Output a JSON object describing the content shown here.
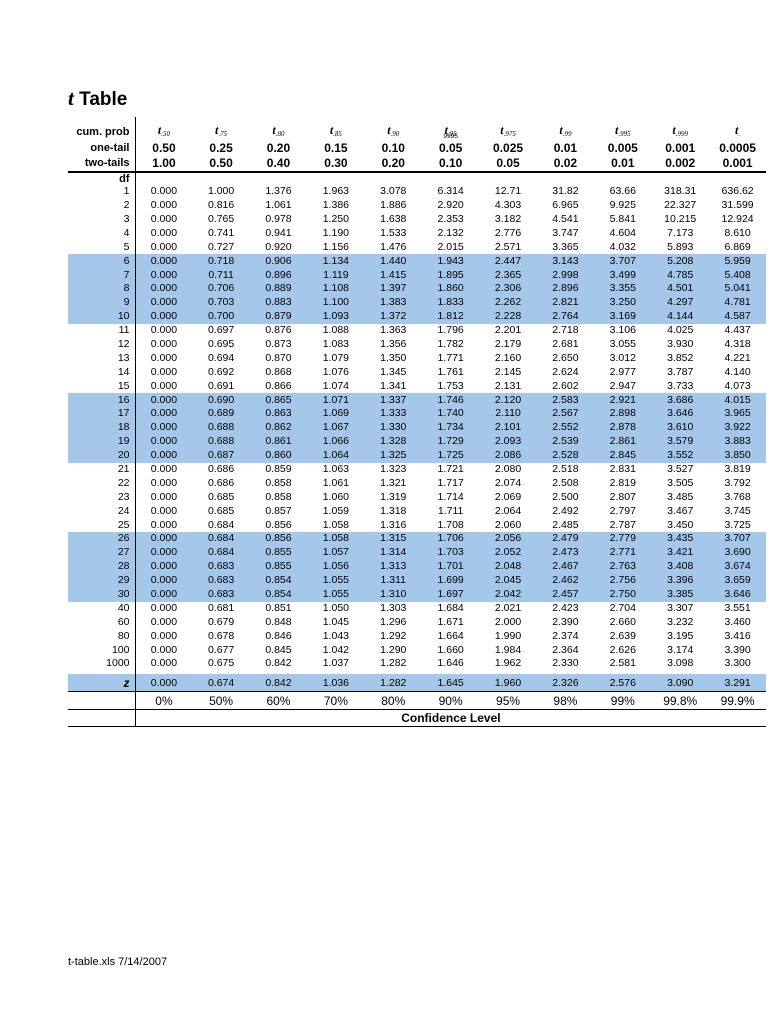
{
  "colors": {
    "row_highlight": "#a5c7e9",
    "border": "#000000",
    "page_background": "#ffffff"
  },
  "title": {
    "t": "t",
    "rest": " Table"
  },
  "table": {
    "corner_labels": {
      "cum_prob": "cum. prob",
      "one_tail": "one-tail",
      "two_tails": "two-tails",
      "df": "df"
    },
    "col_headers": [
      {
        "base": "t",
        "sub": ".50"
      },
      {
        "base": "t",
        "sub": ".75"
      },
      {
        "base": "t",
        "sub": ".80"
      },
      {
        "base": "t",
        "sub": ".85"
      },
      {
        "base": "t",
        "sub": ".90"
      },
      {
        "base": "t",
        "sub": ".95",
        "note": "9995"
      },
      {
        "base": "t",
        "sub": ".975"
      },
      {
        "base": "t",
        "sub": ".99"
      },
      {
        "base": "t",
        "sub": ".995"
      },
      {
        "base": "t",
        "sub": ".999"
      },
      {
        "base": "t",
        "sub": "."
      }
    ],
    "one_tail_values": [
      "0.50",
      "0.25",
      "0.20",
      "0.15",
      "0.10",
      "0.05",
      "0.025",
      "0.01",
      "0.005",
      "0.001",
      "0.0005"
    ],
    "two_tail_values": [
      "1.00",
      "0.50",
      "0.40",
      "0.30",
      "0.20",
      "0.10",
      "0.05",
      "0.02",
      "0.01",
      "0.002",
      "0.001"
    ],
    "rows": [
      {
        "df": "1",
        "values": [
          "0.000",
          "1.000",
          "1.376",
          "1.963",
          "3.078",
          "6.314",
          "12.71",
          "31.82",
          "63.66",
          "318.31",
          "636.62"
        ]
      },
      {
        "df": "2",
        "values": [
          "0.000",
          "0.816",
          "1.061",
          "1.386",
          "1.886",
          "2.920",
          "4.303",
          "6.965",
          "9.925",
          "22.327",
          "31.599"
        ]
      },
      {
        "df": "3",
        "values": [
          "0.000",
          "0.765",
          "0.978",
          "1.250",
          "1.638",
          "2.353",
          "3.182",
          "4.541",
          "5.841",
          "10.215",
          "12.924"
        ]
      },
      {
        "df": "4",
        "values": [
          "0.000",
          "0.741",
          "0.941",
          "1.190",
          "1.533",
          "2.132",
          "2.776",
          "3.747",
          "4.604",
          "7.173",
          "8.610"
        ]
      },
      {
        "df": "5",
        "values": [
          "0.000",
          "0.727",
          "0.920",
          "1.156",
          "1.476",
          "2.015",
          "2.571",
          "3.365",
          "4.032",
          "5.893",
          "6.869"
        ]
      },
      {
        "df": "6",
        "highlight": true,
        "values": [
          "0.000",
          "0.718",
          "0.906",
          "1.134",
          "1.440",
          "1.943",
          "2.447",
          "3.143",
          "3.707",
          "5.208",
          "5.959"
        ]
      },
      {
        "df": "7",
        "highlight": true,
        "values": [
          "0.000",
          "0.711",
          "0.896",
          "1.119",
          "1.415",
          "1.895",
          "2.365",
          "2.998",
          "3.499",
          "4.785",
          "5.408"
        ]
      },
      {
        "df": "8",
        "highlight": true,
        "values": [
          "0.000",
          "0.706",
          "0.889",
          "1.108",
          "1.397",
          "1.860",
          "2.306",
          "2.896",
          "3.355",
          "4.501",
          "5.041"
        ]
      },
      {
        "df": "9",
        "highlight": true,
        "values": [
          "0.000",
          "0.703",
          "0.883",
          "1.100",
          "1.383",
          "1.833",
          "2.262",
          "2.821",
          "3.250",
          "4.297",
          "4.781"
        ]
      },
      {
        "df": "10",
        "highlight": true,
        "values": [
          "0.000",
          "0.700",
          "0.879",
          "1.093",
          "1.372",
          "1.812",
          "2.228",
          "2.764",
          "3.169",
          "4.144",
          "4.587"
        ]
      },
      {
        "df": "11",
        "values": [
          "0.000",
          "0.697",
          "0.876",
          "1.088",
          "1.363",
          "1.796",
          "2.201",
          "2.718",
          "3.106",
          "4.025",
          "4.437"
        ]
      },
      {
        "df": "12",
        "values": [
          "0.000",
          "0.695",
          "0.873",
          "1.083",
          "1.356",
          "1.782",
          "2.179",
          "2.681",
          "3.055",
          "3.930",
          "4.318"
        ]
      },
      {
        "df": "13",
        "values": [
          "0.000",
          "0.694",
          "0.870",
          "1.079",
          "1.350",
          "1.771",
          "2.160",
          "2.650",
          "3.012",
          "3.852",
          "4.221"
        ]
      },
      {
        "df": "14",
        "values": [
          "0.000",
          "0.692",
          "0.868",
          "1.076",
          "1.345",
          "1.761",
          "2.145",
          "2.624",
          "2.977",
          "3.787",
          "4.140"
        ]
      },
      {
        "df": "15",
        "values": [
          "0.000",
          "0.691",
          "0.866",
          "1.074",
          "1.341",
          "1.753",
          "2.131",
          "2.602",
          "2.947",
          "3.733",
          "4.073"
        ]
      },
      {
        "df": "16",
        "highlight": true,
        "values": [
          "0.000",
          "0.690",
          "0.865",
          "1.071",
          "1.337",
          "1.746",
          "2.120",
          "2.583",
          "2.921",
          "3.686",
          "4.015"
        ]
      },
      {
        "df": "17",
        "highlight": true,
        "values": [
          "0.000",
          "0.689",
          "0.863",
          "1.069",
          "1.333",
          "1.740",
          "2.110",
          "2.567",
          "2.898",
          "3.646",
          "3.965"
        ]
      },
      {
        "df": "18",
        "highlight": true,
        "values": [
          "0.000",
          "0.688",
          "0.862",
          "1.067",
          "1.330",
          "1.734",
          "2.101",
          "2.552",
          "2.878",
          "3.610",
          "3.922"
        ]
      },
      {
        "df": "19",
        "highlight": true,
        "values": [
          "0.000",
          "0.688",
          "0.861",
          "1.066",
          "1.328",
          "1.729",
          "2.093",
          "2.539",
          "2.861",
          "3.579",
          "3.883"
        ]
      },
      {
        "df": "20",
        "highlight": true,
        "values": [
          "0.000",
          "0.687",
          "0.860",
          "1.064",
          "1.325",
          "1.725",
          "2.086",
          "2.528",
          "2.845",
          "3.552",
          "3.850"
        ]
      },
      {
        "df": "21",
        "values": [
          "0.000",
          "0.686",
          "0.859",
          "1.063",
          "1.323",
          "1.721",
          "2.080",
          "2.518",
          "2.831",
          "3.527",
          "3.819"
        ]
      },
      {
        "df": "22",
        "values": [
          "0.000",
          "0.686",
          "0.858",
          "1.061",
          "1.321",
          "1.717",
          "2.074",
          "2.508",
          "2.819",
          "3.505",
          "3.792"
        ]
      },
      {
        "df": "23",
        "values": [
          "0.000",
          "0.685",
          "0.858",
          "1.060",
          "1.319",
          "1.714",
          "2.069",
          "2.500",
          "2.807",
          "3.485",
          "3.768"
        ]
      },
      {
        "df": "24",
        "values": [
          "0.000",
          "0.685",
          "0.857",
          "1.059",
          "1.318",
          "1.711",
          "2.064",
          "2.492",
          "2.797",
          "3.467",
          "3.745"
        ]
      },
      {
        "df": "25",
        "values": [
          "0.000",
          "0.684",
          "0.856",
          "1.058",
          "1.316",
          "1.708",
          "2.060",
          "2.485",
          "2.787",
          "3.450",
          "3.725"
        ]
      },
      {
        "df": "26",
        "highlight": true,
        "values": [
          "0.000",
          "0.684",
          "0.856",
          "1.058",
          "1.315",
          "1.706",
          "2.056",
          "2.479",
          "2.779",
          "3.435",
          "3.707"
        ]
      },
      {
        "df": "27",
        "highlight": true,
        "values": [
          "0.000",
          "0.684",
          "0.855",
          "1.057",
          "1.314",
          "1.703",
          "2.052",
          "2.473",
          "2.771",
          "3.421",
          "3.690"
        ]
      },
      {
        "df": "28",
        "highlight": true,
        "values": [
          "0.000",
          "0.683",
          "0.855",
          "1.056",
          "1.313",
          "1.701",
          "2.048",
          "2.467",
          "2.763",
          "3.408",
          "3.674"
        ]
      },
      {
        "df": "29",
        "highlight": true,
        "values": [
          "0.000",
          "0.683",
          "0.854",
          "1.055",
          "1.311",
          "1.699",
          "2.045",
          "2.462",
          "2.756",
          "3.396",
          "3.659"
        ]
      },
      {
        "df": "30",
        "highlight": true,
        "values": [
          "0.000",
          "0.683",
          "0.854",
          "1.055",
          "1.310",
          "1.697",
          "2.042",
          "2.457",
          "2.750",
          "3.385",
          "3.646"
        ]
      },
      {
        "df": "40",
        "values": [
          "0.000",
          "0.681",
          "0.851",
          "1.050",
          "1.303",
          "1.684",
          "2.021",
          "2.423",
          "2.704",
          "3.307",
          "3.551"
        ]
      },
      {
        "df": "60",
        "values": [
          "0.000",
          "0.679",
          "0.848",
          "1.045",
          "1.296",
          "1.671",
          "2.000",
          "2.390",
          "2.660",
          "3.232",
          "3.460"
        ]
      },
      {
        "df": "80",
        "values": [
          "0.000",
          "0.678",
          "0.846",
          "1.043",
          "1.292",
          "1.664",
          "1.990",
          "2.374",
          "2.639",
          "3.195",
          "3.416"
        ]
      },
      {
        "df": "100",
        "values": [
          "0.000",
          "0.677",
          "0.845",
          "1.042",
          "1.290",
          "1.660",
          "1.984",
          "2.364",
          "2.626",
          "3.174",
          "3.390"
        ]
      },
      {
        "df": "1000",
        "values": [
          "0.000",
          "0.675",
          "0.842",
          "1.037",
          "1.282",
          "1.646",
          "1.962",
          "2.330",
          "2.581",
          "3.098",
          "3.300"
        ]
      },
      {
        "df": "z",
        "z": true,
        "highlight": true,
        "values": [
          "0.000",
          "0.674",
          "0.842",
          "1.036",
          "1.282",
          "1.645",
          "1.960",
          "2.326",
          "2.576",
          "3.090",
          "3.291"
        ]
      }
    ],
    "confidence_percents": [
      "0%",
      "50%",
      "60%",
      "70%",
      "80%",
      "90%",
      "95%",
      "98%",
      "99%",
      "99.8%",
      "99.9%"
    ],
    "confidence_label": "Confidence Level"
  },
  "footer": {
    "file_note": "t-table.xls 7/14/2007"
  }
}
